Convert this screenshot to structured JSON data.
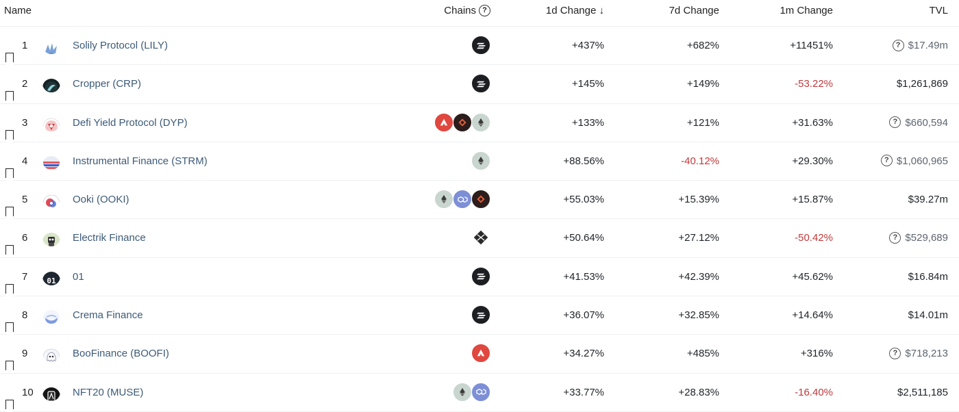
{
  "header": {
    "name": "Name",
    "chains": "Chains",
    "d1": "1d Change",
    "d7": "7d Change",
    "m1": "1m Change",
    "tvl": "TVL"
  },
  "rows": [
    {
      "rank": "1",
      "name": "Solily Protocol (LILY)",
      "logo": "lily-logo",
      "chains": [
        "solana"
      ],
      "d1": "+437%",
      "d7": "+682%",
      "m1": "+11451%",
      "tvl": "$17.49m",
      "tvl_uncertain": true,
      "d7_neg": false,
      "m1_neg": false
    },
    {
      "rank": "2",
      "name": "Cropper (CRP)",
      "logo": "cropper-logo",
      "chains": [
        "solana"
      ],
      "d1": "+145%",
      "d7": "+149%",
      "m1": "-53.22%",
      "tvl": "$1,261,869",
      "tvl_uncertain": false,
      "d7_neg": false,
      "m1_neg": true
    },
    {
      "rank": "3",
      "name": "Defi Yield Protocol (DYP)",
      "logo": "dyp-logo",
      "chains": [
        "avalanche",
        "bsc",
        "ethereum"
      ],
      "d1": "+133%",
      "d7": "+121%",
      "m1": "+31.63%",
      "tvl": "$660,594",
      "tvl_uncertain": true,
      "d7_neg": false,
      "m1_neg": false
    },
    {
      "rank": "4",
      "name": "Instrumental Finance (STRM)",
      "logo": "strm-logo",
      "chains": [
        "ethereum"
      ],
      "d1": "+88.56%",
      "d7": "-40.12%",
      "m1": "+29.30%",
      "tvl": "$1,060,965",
      "tvl_uncertain": true,
      "d7_neg": true,
      "m1_neg": false
    },
    {
      "rank": "5",
      "name": "Ooki (OOKI)",
      "logo": "ooki-logo",
      "chains": [
        "ethereum",
        "polygon",
        "bsc"
      ],
      "d1": "+55.03%",
      "d7": "+15.39%",
      "m1": "+15.87%",
      "tvl": "$39.27m",
      "tvl_uncertain": false,
      "d7_neg": false,
      "m1_neg": false
    },
    {
      "rank": "6",
      "name": "Electrik Finance",
      "logo": "electrik-logo",
      "chains": [
        "elrond"
      ],
      "d1": "+50.64%",
      "d7": "+27.12%",
      "m1": "-50.42%",
      "tvl": "$529,689",
      "tvl_uncertain": true,
      "d7_neg": false,
      "m1_neg": true
    },
    {
      "rank": "7",
      "name": "01",
      "logo": "01-logo",
      "chains": [
        "solana"
      ],
      "d1": "+41.53%",
      "d7": "+42.39%",
      "m1": "+45.62%",
      "tvl": "$16.84m",
      "tvl_uncertain": false,
      "d7_neg": false,
      "m1_neg": false
    },
    {
      "rank": "8",
      "name": "Crema Finance",
      "logo": "crema-logo",
      "chains": [
        "solana"
      ],
      "d1": "+36.07%",
      "d7": "+32.85%",
      "m1": "+14.64%",
      "tvl": "$14.01m",
      "tvl_uncertain": false,
      "d7_neg": false,
      "m1_neg": false
    },
    {
      "rank": "9",
      "name": "BooFinance (BOOFI)",
      "logo": "boofi-logo",
      "chains": [
        "avalanche"
      ],
      "d1": "+34.27%",
      "d7": "+485%",
      "m1": "+316%",
      "tvl": "$718,213",
      "tvl_uncertain": true,
      "d7_neg": false,
      "m1_neg": false
    },
    {
      "rank": "10",
      "name": "NFT20 (MUSE)",
      "logo": "muse-logo",
      "chains": [
        "ethereum",
        "polygon"
      ],
      "d1": "+33.77%",
      "d7": "+28.83%",
      "m1": "-16.40%",
      "tvl": "$2,511,185",
      "tvl_uncertain": false,
      "d7_neg": false,
      "m1_neg": true
    }
  ],
  "colors": {
    "negative": "#c0393b",
    "name_link": "#3c5a78",
    "solana": "#1c1e22",
    "avalanche": "#e0473f",
    "ethereum": "#c9d6cf",
    "bsc": "#2b1d1b",
    "polygon": "#7d8fd6"
  }
}
